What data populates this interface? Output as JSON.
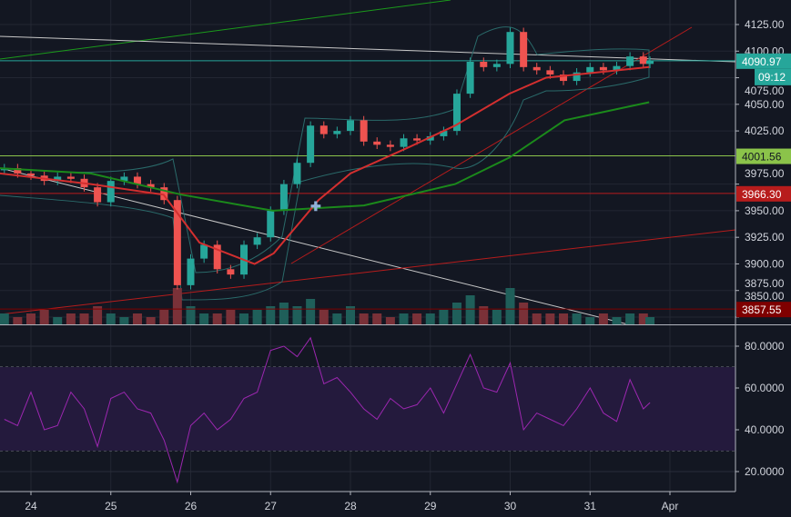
{
  "chart_data": [
    {
      "type": "candlestick",
      "pane": "price",
      "ylim": [
        3850,
        4135
      ],
      "xlim": [
        23.61,
        32.85
      ],
      "grid": true,
      "y_ticks": [
        "4125.00",
        "4100.00",
        "4075.00",
        "4050.00",
        "4025.00",
        "3975.00",
        "3950.00",
        "3925.00",
        "3900.00",
        "3875.00",
        "3850.00"
      ],
      "x_ticks": [
        {
          "label": "24",
          "x": 24
        },
        {
          "label": "25",
          "x": 25
        },
        {
          "label": "26",
          "x": 26
        },
        {
          "label": "27",
          "x": 27
        },
        {
          "label": "28",
          "x": 28
        },
        {
          "label": "29",
          "x": 29
        },
        {
          "label": "30",
          "x": 30
        },
        {
          "label": "31",
          "x": 31
        },
        {
          "label": "Apr",
          "x": 32
        }
      ],
      "closes": [
        [
          23.667,
          3990
        ],
        [
          23.833,
          3985
        ],
        [
          24.0,
          3983
        ],
        [
          24.167,
          3978
        ],
        [
          24.333,
          3982
        ],
        [
          24.5,
          3980
        ],
        [
          24.667,
          3972
        ],
        [
          24.833,
          3958
        ],
        [
          25.0,
          3978
        ],
        [
          25.167,
          3982
        ],
        [
          25.333,
          3975
        ],
        [
          25.5,
          3972
        ],
        [
          25.667,
          3960
        ],
        [
          25.833,
          3880
        ],
        [
          26.0,
          3905
        ],
        [
          26.167,
          3918
        ],
        [
          26.333,
          3895
        ],
        [
          26.5,
          3890
        ],
        [
          26.667,
          3918
        ],
        [
          26.833,
          3925
        ],
        [
          27.0,
          3950
        ],
        [
          27.167,
          3975
        ],
        [
          27.333,
          3995
        ],
        [
          27.5,
          4030
        ],
        [
          27.667,
          4022
        ],
        [
          27.833,
          4025
        ],
        [
          28.0,
          4035
        ],
        [
          28.167,
          4015
        ],
        [
          28.333,
          4012
        ],
        [
          28.5,
          4010
        ],
        [
          28.667,
          4018
        ],
        [
          28.833,
          4016
        ],
        [
          29.0,
          4020
        ],
        [
          29.167,
          4025
        ],
        [
          29.333,
          4060
        ],
        [
          29.5,
          4090
        ],
        [
          29.667,
          4085
        ],
        [
          29.833,
          4088
        ],
        [
          30.0,
          4118
        ],
        [
          30.167,
          4085
        ],
        [
          30.333,
          4082
        ],
        [
          30.5,
          4078
        ],
        [
          30.667,
          4072
        ],
        [
          30.833,
          4080
        ],
        [
          31.0,
          4085
        ],
        [
          31.167,
          4082
        ],
        [
          31.333,
          4086
        ],
        [
          31.5,
          4095
        ],
        [
          31.667,
          4088
        ],
        [
          31.75,
          4091
        ]
      ],
      "volume_relative": [
        0.3,
        0.2,
        0.3,
        0.4,
        0.2,
        0.3,
        0.3,
        0.5,
        0.3,
        0.2,
        0.3,
        0.2,
        0.4,
        1.0,
        0.5,
        0.3,
        0.3,
        0.4,
        0.3,
        0.4,
        0.5,
        0.6,
        0.5,
        0.7,
        0.4,
        0.3,
        0.5,
        0.3,
        0.3,
        0.2,
        0.3,
        0.3,
        0.3,
        0.4,
        0.6,
        0.8,
        0.5,
        0.4,
        1.0,
        0.6,
        0.3,
        0.3,
        0.3,
        0.3,
        0.2,
        0.3,
        0.2,
        0.3,
        0.3,
        0.2
      ],
      "ma_fast": [
        [
          23.61,
          3985
        ],
        [
          24.75,
          3975
        ],
        [
          25.66,
          3965
        ],
        [
          26.11,
          3920
        ],
        [
          26.8,
          3900
        ],
        [
          27.04,
          3910
        ],
        [
          27.6,
          3960
        ],
        [
          28.0,
          3985
        ],
        [
          28.74,
          4010
        ],
        [
          29.31,
          4030
        ],
        [
          29.99,
          4060
        ],
        [
          30.45,
          4075
        ],
        [
          31.74,
          4085
        ]
      ],
      "ma_slow": [
        [
          23.61,
          3990
        ],
        [
          24.75,
          3985
        ],
        [
          25.89,
          3965
        ],
        [
          27.03,
          3950
        ],
        [
          28.17,
          3955
        ],
        [
          29.31,
          3975
        ],
        [
          29.99,
          4000
        ],
        [
          30.68,
          4035
        ],
        [
          31.74,
          4052
        ]
      ],
      "horizontal_levels": [
        {
          "label": "4090.97",
          "price": 4090.97,
          "color": "#26a69a"
        },
        {
          "label": "4001.56",
          "price": 4001.56,
          "color": "#8bc34a"
        },
        {
          "label": "3966.30",
          "price": 3966.3,
          "color": "#b71c1c"
        },
        {
          "label": "3857.55",
          "price": 3857.55,
          "color": "#7f0000"
        }
      ],
      "countdown": "09:12",
      "colors": {
        "up": "#26a69a",
        "down": "#ef5350",
        "ma_fast": "#d32f2f",
        "ma_slow": "#1b8a1b",
        "bands": "#2a6a6a"
      }
    },
    {
      "type": "line",
      "pane": "RSI",
      "ylim": [
        10,
        88
      ],
      "y_ticks": [
        "80.0000",
        "60.0000",
        "40.0000",
        "20.0000"
      ],
      "band": [
        30,
        70
      ],
      "color": "#9c27b0",
      "values": [
        [
          23.667,
          45
        ],
        [
          23.833,
          42
        ],
        [
          24.0,
          58
        ],
        [
          24.167,
          40
        ],
        [
          24.333,
          42
        ],
        [
          24.5,
          58
        ],
        [
          24.667,
          50
        ],
        [
          24.833,
          32
        ],
        [
          25.0,
          55
        ],
        [
          25.167,
          58
        ],
        [
          25.333,
          50
        ],
        [
          25.5,
          48
        ],
        [
          25.667,
          35
        ],
        [
          25.833,
          15
        ],
        [
          26.0,
          42
        ],
        [
          26.167,
          48
        ],
        [
          26.333,
          40
        ],
        [
          26.5,
          45
        ],
        [
          26.667,
          55
        ],
        [
          26.833,
          58
        ],
        [
          27.0,
          78
        ],
        [
          27.167,
          80
        ],
        [
          27.333,
          75
        ],
        [
          27.5,
          84
        ],
        [
          27.667,
          62
        ],
        [
          27.833,
          65
        ],
        [
          28.0,
          58
        ],
        [
          28.167,
          50
        ],
        [
          28.333,
          45
        ],
        [
          28.5,
          55
        ],
        [
          28.667,
          50
        ],
        [
          28.833,
          52
        ],
        [
          29.0,
          60
        ],
        [
          29.167,
          48
        ],
        [
          29.333,
          62
        ],
        [
          29.5,
          76
        ],
        [
          29.667,
          60
        ],
        [
          29.833,
          58
        ],
        [
          30.0,
          72
        ],
        [
          30.167,
          40
        ],
        [
          30.333,
          48
        ],
        [
          30.5,
          45
        ],
        [
          30.667,
          42
        ],
        [
          30.833,
          50
        ],
        [
          31.0,
          60
        ],
        [
          31.167,
          48
        ],
        [
          31.333,
          44
        ],
        [
          31.5,
          64
        ],
        [
          31.667,
          50
        ],
        [
          31.75,
          53
        ]
      ]
    }
  ]
}
